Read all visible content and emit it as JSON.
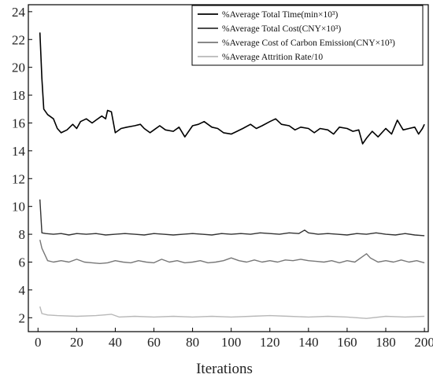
{
  "chart_data": {
    "type": "line",
    "title": "",
    "xlabel": "Iterations",
    "ylabel": "",
    "xlim": [
      -5,
      202
    ],
    "ylim": [
      1,
      24.5
    ],
    "x_ticks": [
      0,
      20,
      40,
      60,
      80,
      100,
      120,
      140,
      160,
      180,
      200
    ],
    "y_ticks": [
      2,
      4,
      6,
      8,
      10,
      12,
      14,
      16,
      18,
      20,
      22,
      24
    ],
    "grid": false,
    "legend_position": "top-right",
    "series": [
      {
        "name": "%Average Total Time(min×10³)",
        "color": "#000000",
        "values": [
          [
            1,
            22.5
          ],
          [
            2,
            19.2
          ],
          [
            3,
            17.0
          ],
          [
            5,
            16.6
          ],
          [
            8,
            16.3
          ],
          [
            10,
            15.6
          ],
          [
            12,
            15.3
          ],
          [
            15,
            15.5
          ],
          [
            18,
            15.9
          ],
          [
            20,
            15.6
          ],
          [
            22,
            16.1
          ],
          [
            25,
            16.3
          ],
          [
            28,
            16.0
          ],
          [
            30,
            16.2
          ],
          [
            33,
            16.5
          ],
          [
            35,
            16.3
          ],
          [
            36,
            16.9
          ],
          [
            38,
            16.8
          ],
          [
            40,
            15.3
          ],
          [
            43,
            15.6
          ],
          [
            46,
            15.7
          ],
          [
            50,
            15.8
          ],
          [
            53,
            15.9
          ],
          [
            55,
            15.6
          ],
          [
            58,
            15.3
          ],
          [
            60,
            15.5
          ],
          [
            63,
            15.8
          ],
          [
            66,
            15.5
          ],
          [
            70,
            15.4
          ],
          [
            73,
            15.7
          ],
          [
            76,
            15.0
          ],
          [
            80,
            15.8
          ],
          [
            83,
            15.9
          ],
          [
            86,
            16.1
          ],
          [
            90,
            15.7
          ],
          [
            93,
            15.6
          ],
          [
            96,
            15.3
          ],
          [
            100,
            15.2
          ],
          [
            103,
            15.4
          ],
          [
            106,
            15.6
          ],
          [
            110,
            15.9
          ],
          [
            113,
            15.6
          ],
          [
            116,
            15.8
          ],
          [
            120,
            16.1
          ],
          [
            123,
            16.3
          ],
          [
            126,
            15.9
          ],
          [
            130,
            15.8
          ],
          [
            133,
            15.5
          ],
          [
            136,
            15.7
          ],
          [
            140,
            15.6
          ],
          [
            143,
            15.3
          ],
          [
            146,
            15.6
          ],
          [
            150,
            15.5
          ],
          [
            153,
            15.2
          ],
          [
            156,
            15.7
          ],
          [
            160,
            15.6
          ],
          [
            163,
            15.4
          ],
          [
            166,
            15.5
          ],
          [
            168,
            14.5
          ],
          [
            170,
            14.9
          ],
          [
            173,
            15.4
          ],
          [
            176,
            15.0
          ],
          [
            180,
            15.6
          ],
          [
            183,
            15.2
          ],
          [
            186,
            16.2
          ],
          [
            189,
            15.5
          ],
          [
            192,
            15.6
          ],
          [
            195,
            15.7
          ],
          [
            197,
            15.2
          ],
          [
            199,
            15.6
          ],
          [
            200,
            15.9
          ]
        ]
      },
      {
        "name": "%Average Total Cost(CNY×10³)",
        "color": "#333333",
        "values": [
          [
            1,
            10.5
          ],
          [
            2,
            8.1
          ],
          [
            4,
            8.05
          ],
          [
            8,
            8.0
          ],
          [
            12,
            8.05
          ],
          [
            16,
            7.95
          ],
          [
            20,
            8.05
          ],
          [
            25,
            8.0
          ],
          [
            30,
            8.05
          ],
          [
            35,
            7.95
          ],
          [
            40,
            8.0
          ],
          [
            45,
            8.05
          ],
          [
            50,
            8.0
          ],
          [
            55,
            7.95
          ],
          [
            60,
            8.05
          ],
          [
            65,
            8.0
          ],
          [
            70,
            7.95
          ],
          [
            75,
            8.0
          ],
          [
            80,
            8.05
          ],
          [
            85,
            8.0
          ],
          [
            90,
            7.95
          ],
          [
            95,
            8.05
          ],
          [
            100,
            8.0
          ],
          [
            105,
            8.05
          ],
          [
            110,
            8.0
          ],
          [
            115,
            8.1
          ],
          [
            120,
            8.05
          ],
          [
            125,
            8.0
          ],
          [
            130,
            8.1
          ],
          [
            135,
            8.05
          ],
          [
            138,
            8.3
          ],
          [
            140,
            8.1
          ],
          [
            145,
            8.0
          ],
          [
            150,
            8.05
          ],
          [
            155,
            8.0
          ],
          [
            160,
            7.95
          ],
          [
            165,
            8.05
          ],
          [
            170,
            8.0
          ],
          [
            175,
            8.1
          ],
          [
            180,
            8.0
          ],
          [
            185,
            7.95
          ],
          [
            190,
            8.05
          ],
          [
            195,
            7.95
          ],
          [
            200,
            7.9
          ]
        ]
      },
      {
        "name": "%Average Cost of Carbon Emission(CNY×10³)",
        "color": "#777777",
        "values": [
          [
            1,
            7.6
          ],
          [
            2,
            7.0
          ],
          [
            3,
            6.7
          ],
          [
            5,
            6.1
          ],
          [
            8,
            6.0
          ],
          [
            12,
            6.1
          ],
          [
            16,
            6.0
          ],
          [
            20,
            6.2
          ],
          [
            24,
            6.0
          ],
          [
            28,
            5.95
          ],
          [
            32,
            5.9
          ],
          [
            36,
            5.95
          ],
          [
            40,
            6.1
          ],
          [
            44,
            6.0
          ],
          [
            48,
            5.95
          ],
          [
            52,
            6.1
          ],
          [
            56,
            6.0
          ],
          [
            60,
            5.95
          ],
          [
            64,
            6.2
          ],
          [
            68,
            6.0
          ],
          [
            72,
            6.1
          ],
          [
            76,
            5.95
          ],
          [
            80,
            6.0
          ],
          [
            84,
            6.1
          ],
          [
            88,
            5.95
          ],
          [
            92,
            6.0
          ],
          [
            96,
            6.1
          ],
          [
            100,
            6.3
          ],
          [
            104,
            6.1
          ],
          [
            108,
            6.0
          ],
          [
            112,
            6.15
          ],
          [
            116,
            6.0
          ],
          [
            120,
            6.1
          ],
          [
            124,
            6.0
          ],
          [
            128,
            6.15
          ],
          [
            132,
            6.1
          ],
          [
            136,
            6.2
          ],
          [
            140,
            6.1
          ],
          [
            144,
            6.05
          ],
          [
            148,
            6.0
          ],
          [
            152,
            6.1
          ],
          [
            156,
            5.95
          ],
          [
            160,
            6.1
          ],
          [
            164,
            6.0
          ],
          [
            168,
            6.4
          ],
          [
            170,
            6.6
          ],
          [
            172,
            6.3
          ],
          [
            176,
            6.0
          ],
          [
            180,
            6.1
          ],
          [
            184,
            6.0
          ],
          [
            188,
            6.15
          ],
          [
            192,
            6.0
          ],
          [
            196,
            6.1
          ],
          [
            200,
            5.95
          ]
        ]
      },
      {
        "name": "%Average Attrition Rate/10",
        "color": "#b8b8b8",
        "values": [
          [
            1,
            2.8
          ],
          [
            2,
            2.3
          ],
          [
            5,
            2.2
          ],
          [
            10,
            2.15
          ],
          [
            20,
            2.1
          ],
          [
            30,
            2.15
          ],
          [
            38,
            2.25
          ],
          [
            42,
            2.05
          ],
          [
            50,
            2.1
          ],
          [
            60,
            2.05
          ],
          [
            70,
            2.1
          ],
          [
            80,
            2.05
          ],
          [
            90,
            2.1
          ],
          [
            100,
            2.05
          ],
          [
            110,
            2.1
          ],
          [
            120,
            2.15
          ],
          [
            130,
            2.1
          ],
          [
            140,
            2.05
          ],
          [
            150,
            2.1
          ],
          [
            160,
            2.05
          ],
          [
            170,
            1.95
          ],
          [
            180,
            2.1
          ],
          [
            190,
            2.05
          ],
          [
            200,
            2.1
          ]
        ]
      }
    ]
  }
}
